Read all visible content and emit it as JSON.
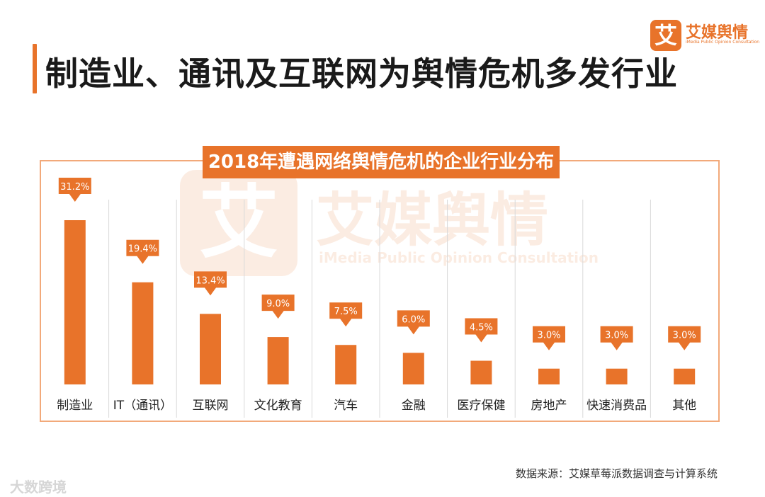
{
  "page": {
    "title": "制造业、通讯及互联网为舆情危机多发行业",
    "source": "数据来源：艾媒草莓派数据调查与计算系统",
    "corner_watermark": "大数跨境"
  },
  "brand": {
    "mark": "艾",
    "name": "艾媒舆情",
    "subtitle": "iMedia Public Opinion Consultation"
  },
  "watermark": {
    "mark": "艾",
    "name": "艾媒舆情",
    "subtitle": "iMedia Public Opinion Consultation"
  },
  "colors": {
    "accent": "#e8732a",
    "frame": "#f2a97a",
    "divider": "#d9d9d9"
  },
  "chart_data": {
    "type": "bar",
    "title": "2018年遭遇网络舆情危机的企业行业分布",
    "categories": [
      "制造业",
      "IT（通讯）",
      "互联网",
      "文化教育",
      "汽车",
      "金融",
      "医疗保健",
      "房地产",
      "快速消费品",
      "其他"
    ],
    "values": [
      31.2,
      19.4,
      13.4,
      9.0,
      7.5,
      6.0,
      4.5,
      3.0,
      3.0,
      3.0
    ],
    "value_labels": [
      "31.2%",
      "19.4%",
      "13.4%",
      "9.0%",
      "7.5%",
      "6.0%",
      "4.5%",
      "3.0%",
      "3.0%",
      "3.0%"
    ],
    "unit": "%",
    "xlabel": "",
    "ylabel": "",
    "ylim": [
      0,
      31.2
    ],
    "grid": false
  }
}
